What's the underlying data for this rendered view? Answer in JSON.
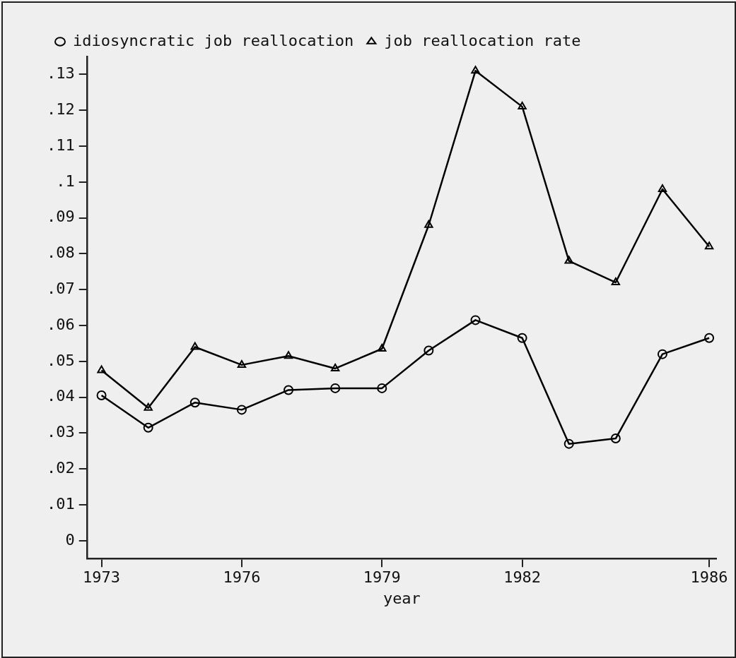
{
  "chart_data": {
    "type": "line",
    "xlabel": "year",
    "x": [
      1973,
      1974,
      1975,
      1976,
      1977,
      1978,
      1979,
      1980,
      1981,
      1982,
      1983,
      1984,
      1985,
      1986
    ],
    "series": [
      {
        "name": "idiosyncratic job reallocation",
        "color": "#000000",
        "marker": "circle",
        "values": [
          0.0405,
          0.0315,
          0.0385,
          0.0365,
          0.042,
          0.0425,
          0.0425,
          0.053,
          0.0615,
          0.0565,
          0.027,
          0.0285,
          0.052,
          0.0565
        ]
      },
      {
        "name": "job reallocation rate",
        "color": "#000000",
        "marker": "triangle",
        "values": [
          0.0475,
          0.037,
          0.054,
          0.049,
          0.0515,
          0.048,
          0.0535,
          0.088,
          0.131,
          0.121,
          0.078,
          0.072,
          0.098,
          0.082
        ]
      }
    ],
    "xlim": [
      1972.7,
      1986.15
    ],
    "xticks": [
      1973,
      1976,
      1979,
      1982,
      1986
    ],
    "ylim": [
      -0.005,
      0.135
    ],
    "yticks": [
      {
        "value": 0,
        "label": "0"
      },
      {
        "value": 0.01,
        "label": ".01"
      },
      {
        "value": 0.02,
        "label": ".02"
      },
      {
        "value": 0.03,
        "label": ".03"
      },
      {
        "value": 0.04,
        "label": ".04"
      },
      {
        "value": 0.05,
        "label": ".05"
      },
      {
        "value": 0.06,
        "label": ".06"
      },
      {
        "value": 0.07,
        "label": ".07"
      },
      {
        "value": 0.08,
        "label": ".08"
      },
      {
        "value": 0.09,
        "label": ".09"
      },
      {
        "value": 0.1,
        "label": ".1"
      },
      {
        "value": 0.11,
        "label": ".11"
      },
      {
        "value": 0.12,
        "label": ".12"
      },
      {
        "value": 0.13,
        "label": ".13"
      }
    ],
    "grid": false,
    "legend": "top left",
    "line_style": "solid"
  }
}
